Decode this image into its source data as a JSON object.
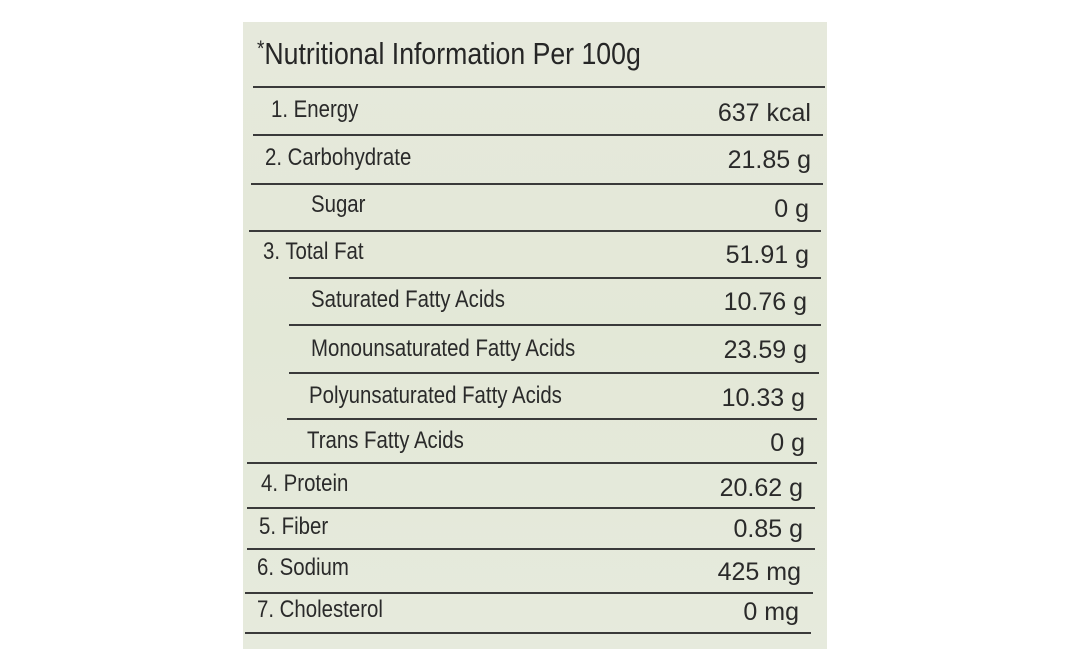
{
  "title": {
    "asterisk": "*",
    "text": "Nutritional Information Per 100g"
  },
  "rows": [
    {
      "name": "1. Energy",
      "value": "637 kcal"
    },
    {
      "name": "2. Carbohydrate",
      "value": "21.85 g"
    },
    {
      "name": "Sugar",
      "value": "0 g"
    },
    {
      "name": "3. Total Fat",
      "value": "51.91 g"
    },
    {
      "name": "Saturated Fatty Acids",
      "value": "10.76 g"
    },
    {
      "name": "Monounsaturated Fatty Acids",
      "value": "23.59 g"
    },
    {
      "name": "Polyunsaturated Fatty Acids",
      "value": "10.33 g"
    },
    {
      "name": "Trans Fatty Acids",
      "value": "0 g"
    },
    {
      "name": "4. Protein",
      "value": "20.62 g"
    },
    {
      "name": "5. Fiber",
      "value": "0.85 g"
    },
    {
      "name": "6. Sodium",
      "value": "425 mg"
    },
    {
      "name": "7. Cholesterol",
      "value": "0 mg"
    }
  ],
  "colors": {
    "background": "#e4e8d8",
    "text": "#2a2a2a"
  }
}
